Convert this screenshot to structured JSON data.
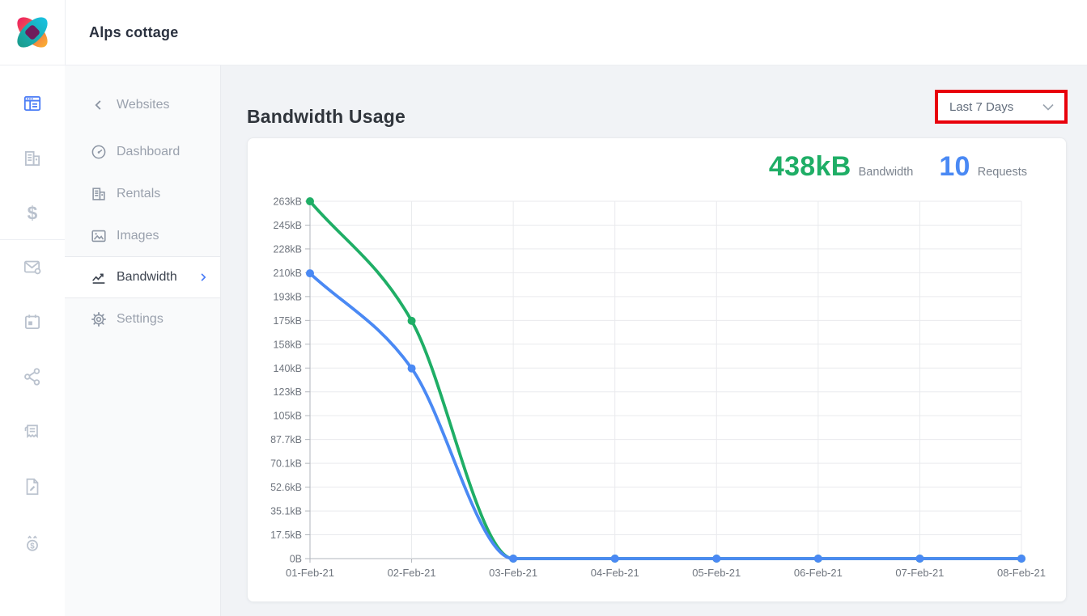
{
  "header": {
    "app_title": "Alps cottage"
  },
  "icon_rail": {
    "active_color": "#4a7cf6",
    "inactive_color": "#bac2ce",
    "items": [
      {
        "icon": "layout-icon",
        "active": true
      },
      {
        "icon": "building-icon",
        "active": false
      },
      {
        "icon": "dollar-icon",
        "active": false
      },
      {
        "icon": "mail-gear-icon",
        "active": false
      },
      {
        "icon": "calendar-icon",
        "active": false
      },
      {
        "icon": "share-icon",
        "active": false
      },
      {
        "icon": "receipt-icon",
        "active": false
      },
      {
        "icon": "document-edit-icon",
        "active": false
      },
      {
        "icon": "money-timer-icon",
        "active": false
      }
    ]
  },
  "sidebar": {
    "back_label": "Websites",
    "items": [
      {
        "label": "Dashboard",
        "icon": "gauge-icon",
        "active": false
      },
      {
        "label": "Rentals",
        "icon": "building-icon",
        "active": false
      },
      {
        "label": "Images",
        "icon": "image-icon",
        "active": false
      },
      {
        "label": "Bandwidth",
        "icon": "chart-line-icon",
        "active": true
      },
      {
        "label": "Settings",
        "icon": "gear-icon",
        "active": false
      }
    ]
  },
  "main": {
    "title": "Bandwidth Usage",
    "range_select": {
      "value": "Last 7 Days",
      "highlight_color": "#e8000b"
    },
    "stats": [
      {
        "value": "438kB",
        "label": "Bandwidth",
        "color": "#1fae66"
      },
      {
        "value": "10",
        "label": "Requests",
        "color": "#4a89f4"
      }
    ]
  },
  "chart_data": {
    "type": "line",
    "title": "Bandwidth Usage - Last 7 Days",
    "x": [
      "01-Feb-21",
      "02-Feb-21",
      "03-Feb-21",
      "04-Feb-21",
      "05-Feb-21",
      "06-Feb-21",
      "07-Feb-21",
      "08-Feb-21"
    ],
    "series": [
      {
        "name": "Bandwidth",
        "color": "#1fae66",
        "values": [
          263,
          175,
          0,
          0,
          0,
          0,
          0,
          0
        ]
      },
      {
        "name": "Requests",
        "color": "#4a89f4",
        "values": [
          210,
          140,
          0,
          0,
          0,
          0,
          0,
          0
        ]
      }
    ],
    "units": "kB",
    "ylim": [
      0,
      263
    ],
    "y_tick_labels_top_to_bottom": [
      "263kB",
      "245kB",
      "228kB",
      "210kB",
      "193kB",
      "175kB",
      "158kB",
      "140kB",
      "123kB",
      "105kB",
      "87.7kB",
      "70.1kB",
      "52.6kB",
      "35.1kB",
      "17.5kB",
      "0B"
    ],
    "xlabel": "",
    "ylabel": "",
    "curve": "monotone",
    "grid": true,
    "legend": "none",
    "markers": true
  }
}
